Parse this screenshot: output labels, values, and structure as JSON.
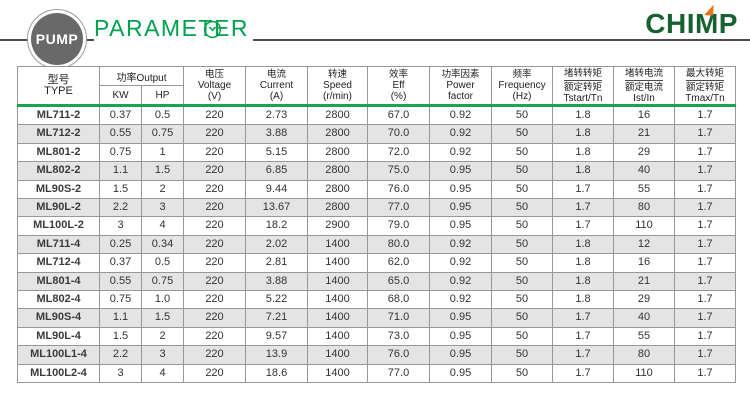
{
  "header": {
    "badge": "PUMP",
    "title": "PARAMETER",
    "brand": "CHIMP",
    "accent_color": "#00a14e",
    "brand_color": "#176030",
    "brand_accent_color": "#e8711a",
    "separator_color": "#1ca351"
  },
  "table": {
    "columns": {
      "type": {
        "zh": "型号",
        "en": "TYPE"
      },
      "output": {
        "group": "功率Output",
        "kw": "KW",
        "hp": "HP"
      },
      "voltage": {
        "zh": "电压",
        "en": "Voltage",
        "unit": "(V)"
      },
      "current": {
        "zh": "电流",
        "en": "Current",
        "unit": "(A)"
      },
      "speed": {
        "zh": "转速",
        "en": "Speed",
        "unit": "(r/min)"
      },
      "eff": {
        "zh": "效率",
        "en": "Eff",
        "unit": "(%)"
      },
      "power_factor": {
        "zh": "功率因素",
        "en": "Power",
        "en2": "factor"
      },
      "frequency": {
        "zh": "频率",
        "en": "Frequency",
        "unit": "(Hz)"
      },
      "tstart": {
        "zh_top": "堵转转矩",
        "zh_bottom": "额定转矩",
        "en": "Tstart/Tn"
      },
      "ist": {
        "zh_top": "堵转电流",
        "zh_bottom": "额定电流",
        "en": "Ist/In"
      },
      "tmax": {
        "zh_top": "最大转矩",
        "zh_bottom": "额定转矩",
        "en": "Tmax/Tn"
      }
    },
    "rows": [
      [
        "ML711-2",
        "0.37",
        "0.5",
        "220",
        "2.73",
        "2800",
        "67.0",
        "0.92",
        "50",
        "1.8",
        "16",
        "1.7"
      ],
      [
        "ML712-2",
        "0.55",
        "0.75",
        "220",
        "3.88",
        "2800",
        "70.0",
        "0.92",
        "50",
        "1.8",
        "21",
        "1.7"
      ],
      [
        "ML801-2",
        "0.75",
        "1",
        "220",
        "5.15",
        "2800",
        "72.0",
        "0.92",
        "50",
        "1.8",
        "29",
        "1.7"
      ],
      [
        "ML802-2",
        "1.1",
        "1.5",
        "220",
        "6.85",
        "2800",
        "75.0",
        "0.95",
        "50",
        "1.8",
        "40",
        "1.7"
      ],
      [
        "ML90S-2",
        "1.5",
        "2",
        "220",
        "9.44",
        "2800",
        "76.0",
        "0.95",
        "50",
        "1.7",
        "55",
        "1.7"
      ],
      [
        "ML90L-2",
        "2.2",
        "3",
        "220",
        "13.67",
        "2800",
        "77.0",
        "0.95",
        "50",
        "1.7",
        "80",
        "1.7"
      ],
      [
        "ML100L-2",
        "3",
        "4",
        "220",
        "18.2",
        "2900",
        "79.0",
        "0.95",
        "50",
        "1.7",
        "110",
        "1.7"
      ],
      [
        "ML711-4",
        "0.25",
        "0.34",
        "220",
        "2.02",
        "1400",
        "80.0",
        "0.92",
        "50",
        "1.8",
        "12",
        "1.7"
      ],
      [
        "ML712-4",
        "0.37",
        "0.5",
        "220",
        "2.81",
        "1400",
        "62.0",
        "0.92",
        "50",
        "1.8",
        "16",
        "1.7"
      ],
      [
        "ML801-4",
        "0.55",
        "0.75",
        "220",
        "3.88",
        "1400",
        "65.0",
        "0.92",
        "50",
        "1.8",
        "21",
        "1.7"
      ],
      [
        "ML802-4",
        "0.75",
        "1.0",
        "220",
        "5.22",
        "1400",
        "68.0",
        "0.92",
        "50",
        "1.8",
        "29",
        "1.7"
      ],
      [
        "ML90S-4",
        "1.1",
        "1.5",
        "220",
        "7.21",
        "1400",
        "71.0",
        "0.95",
        "50",
        "1.7",
        "40",
        "1.7"
      ],
      [
        "ML90L-4",
        "1.5",
        "2",
        "220",
        "9.57",
        "1400",
        "73.0",
        "0.95",
        "50",
        "1.7",
        "55",
        "1.7"
      ],
      [
        "ML100L1-4",
        "2.2",
        "3",
        "220",
        "13.9",
        "1400",
        "76.0",
        "0.95",
        "50",
        "1.7",
        "80",
        "1.7"
      ],
      [
        "ML100L2-4",
        "3",
        "4",
        "220",
        "18.6",
        "1400",
        "77.0",
        "0.95",
        "50",
        "1.7",
        "110",
        "1.7"
      ]
    ]
  }
}
